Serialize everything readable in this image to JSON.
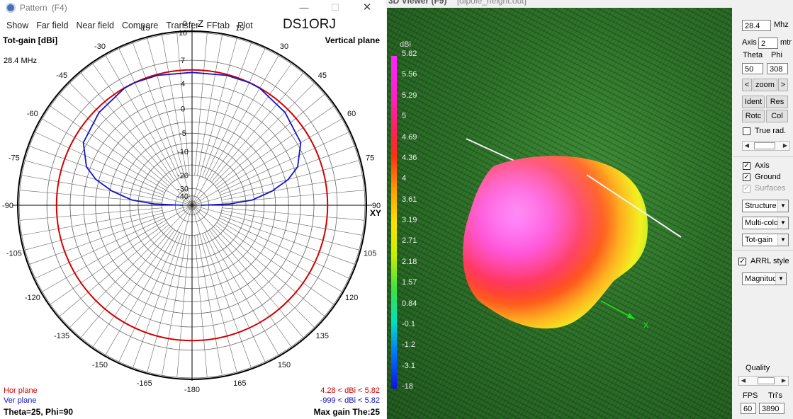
{
  "pattern_window": {
    "title": "Pattern",
    "shortcut": "(F4)",
    "menu": [
      "Show",
      "Far field",
      "Near field",
      "Compare",
      "Transfer",
      "FFtab",
      "Plot"
    ],
    "callsign": "DS1ORJ",
    "plot_title": "Tot-gain [dBi]",
    "plane_title": "Vertical plane",
    "frequency": "28.4 MHz",
    "axis_z": "Z",
    "axis_xy": "XY",
    "hor_plane_label": "Hor plane",
    "ver_plane_label": "Ver plane",
    "hor_range": "4.28 < dBi < 5.82",
    "ver_range": "-999 < dBi < 5.82",
    "theta_phi": "Theta=25, Phi=90",
    "max_gain": "Max gain The:25",
    "colors": {
      "hor": "#d40000",
      "ver": "#1414c8",
      "grid": "#666666"
    }
  },
  "chart_data": {
    "type": "polar",
    "title": "Tot-gain [dBi]",
    "angle_ticks": [
      0,
      15,
      30,
      45,
      60,
      75,
      90,
      105,
      120,
      135,
      150,
      165,
      -180,
      -165,
      -150,
      -135,
      -120,
      -105,
      -90,
      -75,
      -60,
      -45,
      -30,
      -15
    ],
    "radial_ticks_dbi": [
      10,
      7,
      4,
      0,
      -5,
      -10,
      -20,
      -30,
      -40
    ],
    "series": [
      {
        "name": "Hor plane",
        "color": "#d40000",
        "gain_range_dbi": [
          4.28,
          5.82
        ]
      },
      {
        "name": "Ver plane",
        "color": "#1414c8",
        "gain_range_dbi": [
          -999,
          5.82
        ],
        "angles_deg": [
          0,
          15,
          25,
          30,
          45,
          60,
          70,
          75,
          80,
          85,
          88,
          90
        ],
        "gain_dbi": [
          5.5,
          5.7,
          5.82,
          5.8,
          5.3,
          4.5,
          2.6,
          0.5,
          -3.0,
          -8.0,
          -16.0,
          -40.0
        ]
      }
    ]
  },
  "viewer_window": {
    "title": "3D Viewer (F9)",
    "filename": "[dipole_height.out]",
    "colorbar_unit": "dBi",
    "colorbar_labels": [
      "5.82",
      "5.56",
      "5.29",
      "5",
      "4.69",
      "4.36",
      "4",
      "3.61",
      "3.19",
      "2.71",
      "2.18",
      "1.57",
      "0.84",
      "-0.1",
      "-1.2",
      "-3.1",
      "-18"
    ],
    "axis_x_label": "x"
  },
  "control_panel": {
    "freq_value": "28.4",
    "freq_unit": "Mhz",
    "axis_label": "Axis",
    "axis_value": "2",
    "axis_unit": "mtr",
    "theta_label": "Theta",
    "phi_label": "Phi",
    "theta_value": "50",
    "phi_value": "308",
    "zoom_label": "zoom",
    "ident_label": "Ident",
    "res_label": "Res",
    "rotc_label": "Rotc",
    "col_label": "Col",
    "true_rad_label": "True rad.",
    "axis_check_label": "Axis",
    "ground_label": "Ground",
    "surfaces_label": "Surfaces",
    "structure_option": "Structure",
    "color_option": "Multi-colo",
    "gain_option": "Tot-gain",
    "arrl_label": "ARRL style",
    "magnitude_option": "Magnituc",
    "quality_label": "Quality",
    "fps_label": "FPS",
    "tris_label": "Tri's",
    "fps_value": "60",
    "tris_value": "3890"
  }
}
